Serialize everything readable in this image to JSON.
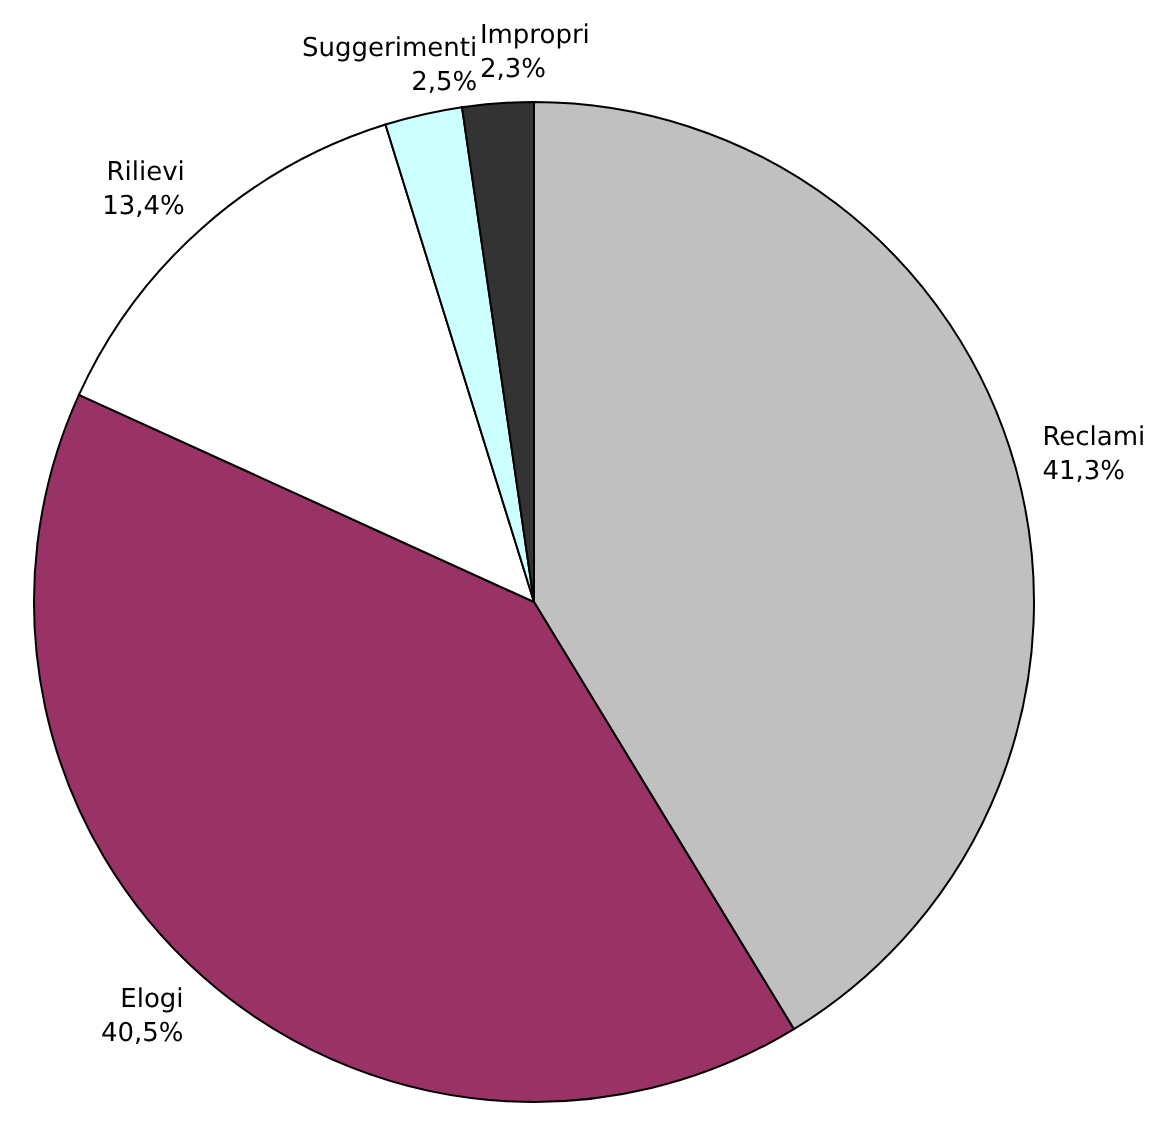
{
  "chart_data": {
    "type": "pie",
    "categories": [
      "Reclami",
      "Elogi",
      "Rilievi",
      "Suggerimenti",
      "Impropri"
    ],
    "values": [
      41.3,
      40.5,
      13.4,
      2.5,
      2.3
    ],
    "colors": [
      "#c0c0c0",
      "#993366",
      "#ffffff",
      "#ccffff",
      "#333333"
    ],
    "value_labels": [
      "41,3%",
      "40,5%",
      "13,4%",
      "2,5%",
      "2,3%"
    ]
  }
}
